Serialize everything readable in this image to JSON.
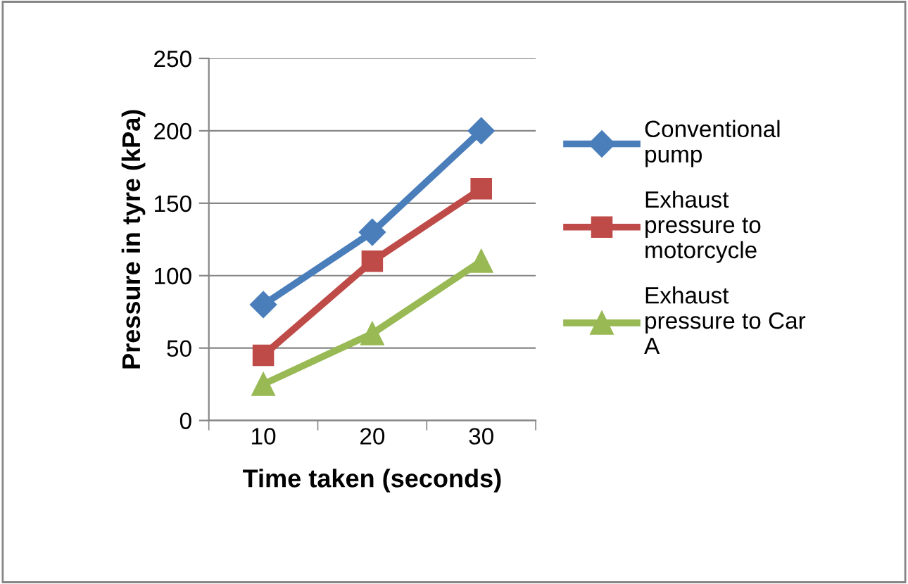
{
  "chart_data": {
    "type": "line",
    "xlabel": "Time taken (seconds)",
    "ylabel": "Pressure in tyre (kPa)",
    "categories": [
      "10",
      "20",
      "30"
    ],
    "series": [
      {
        "name": "Conventional pump",
        "color": "#4a7ebb",
        "marker": "diamond",
        "values": [
          80,
          130,
          200
        ]
      },
      {
        "name": "Exhaust pressure to motorcycle",
        "color": "#be4b48",
        "marker": "square",
        "values": [
          45,
          110,
          160
        ]
      },
      {
        "name": "Exhaust pressure to Car A",
        "color": "#98b954",
        "marker": "triangle",
        "values": [
          25,
          60,
          110
        ]
      }
    ],
    "ylim": [
      0,
      250
    ],
    "yticks": [
      0,
      50,
      100,
      150,
      200,
      250
    ],
    "grid": "y",
    "legend": "right"
  }
}
